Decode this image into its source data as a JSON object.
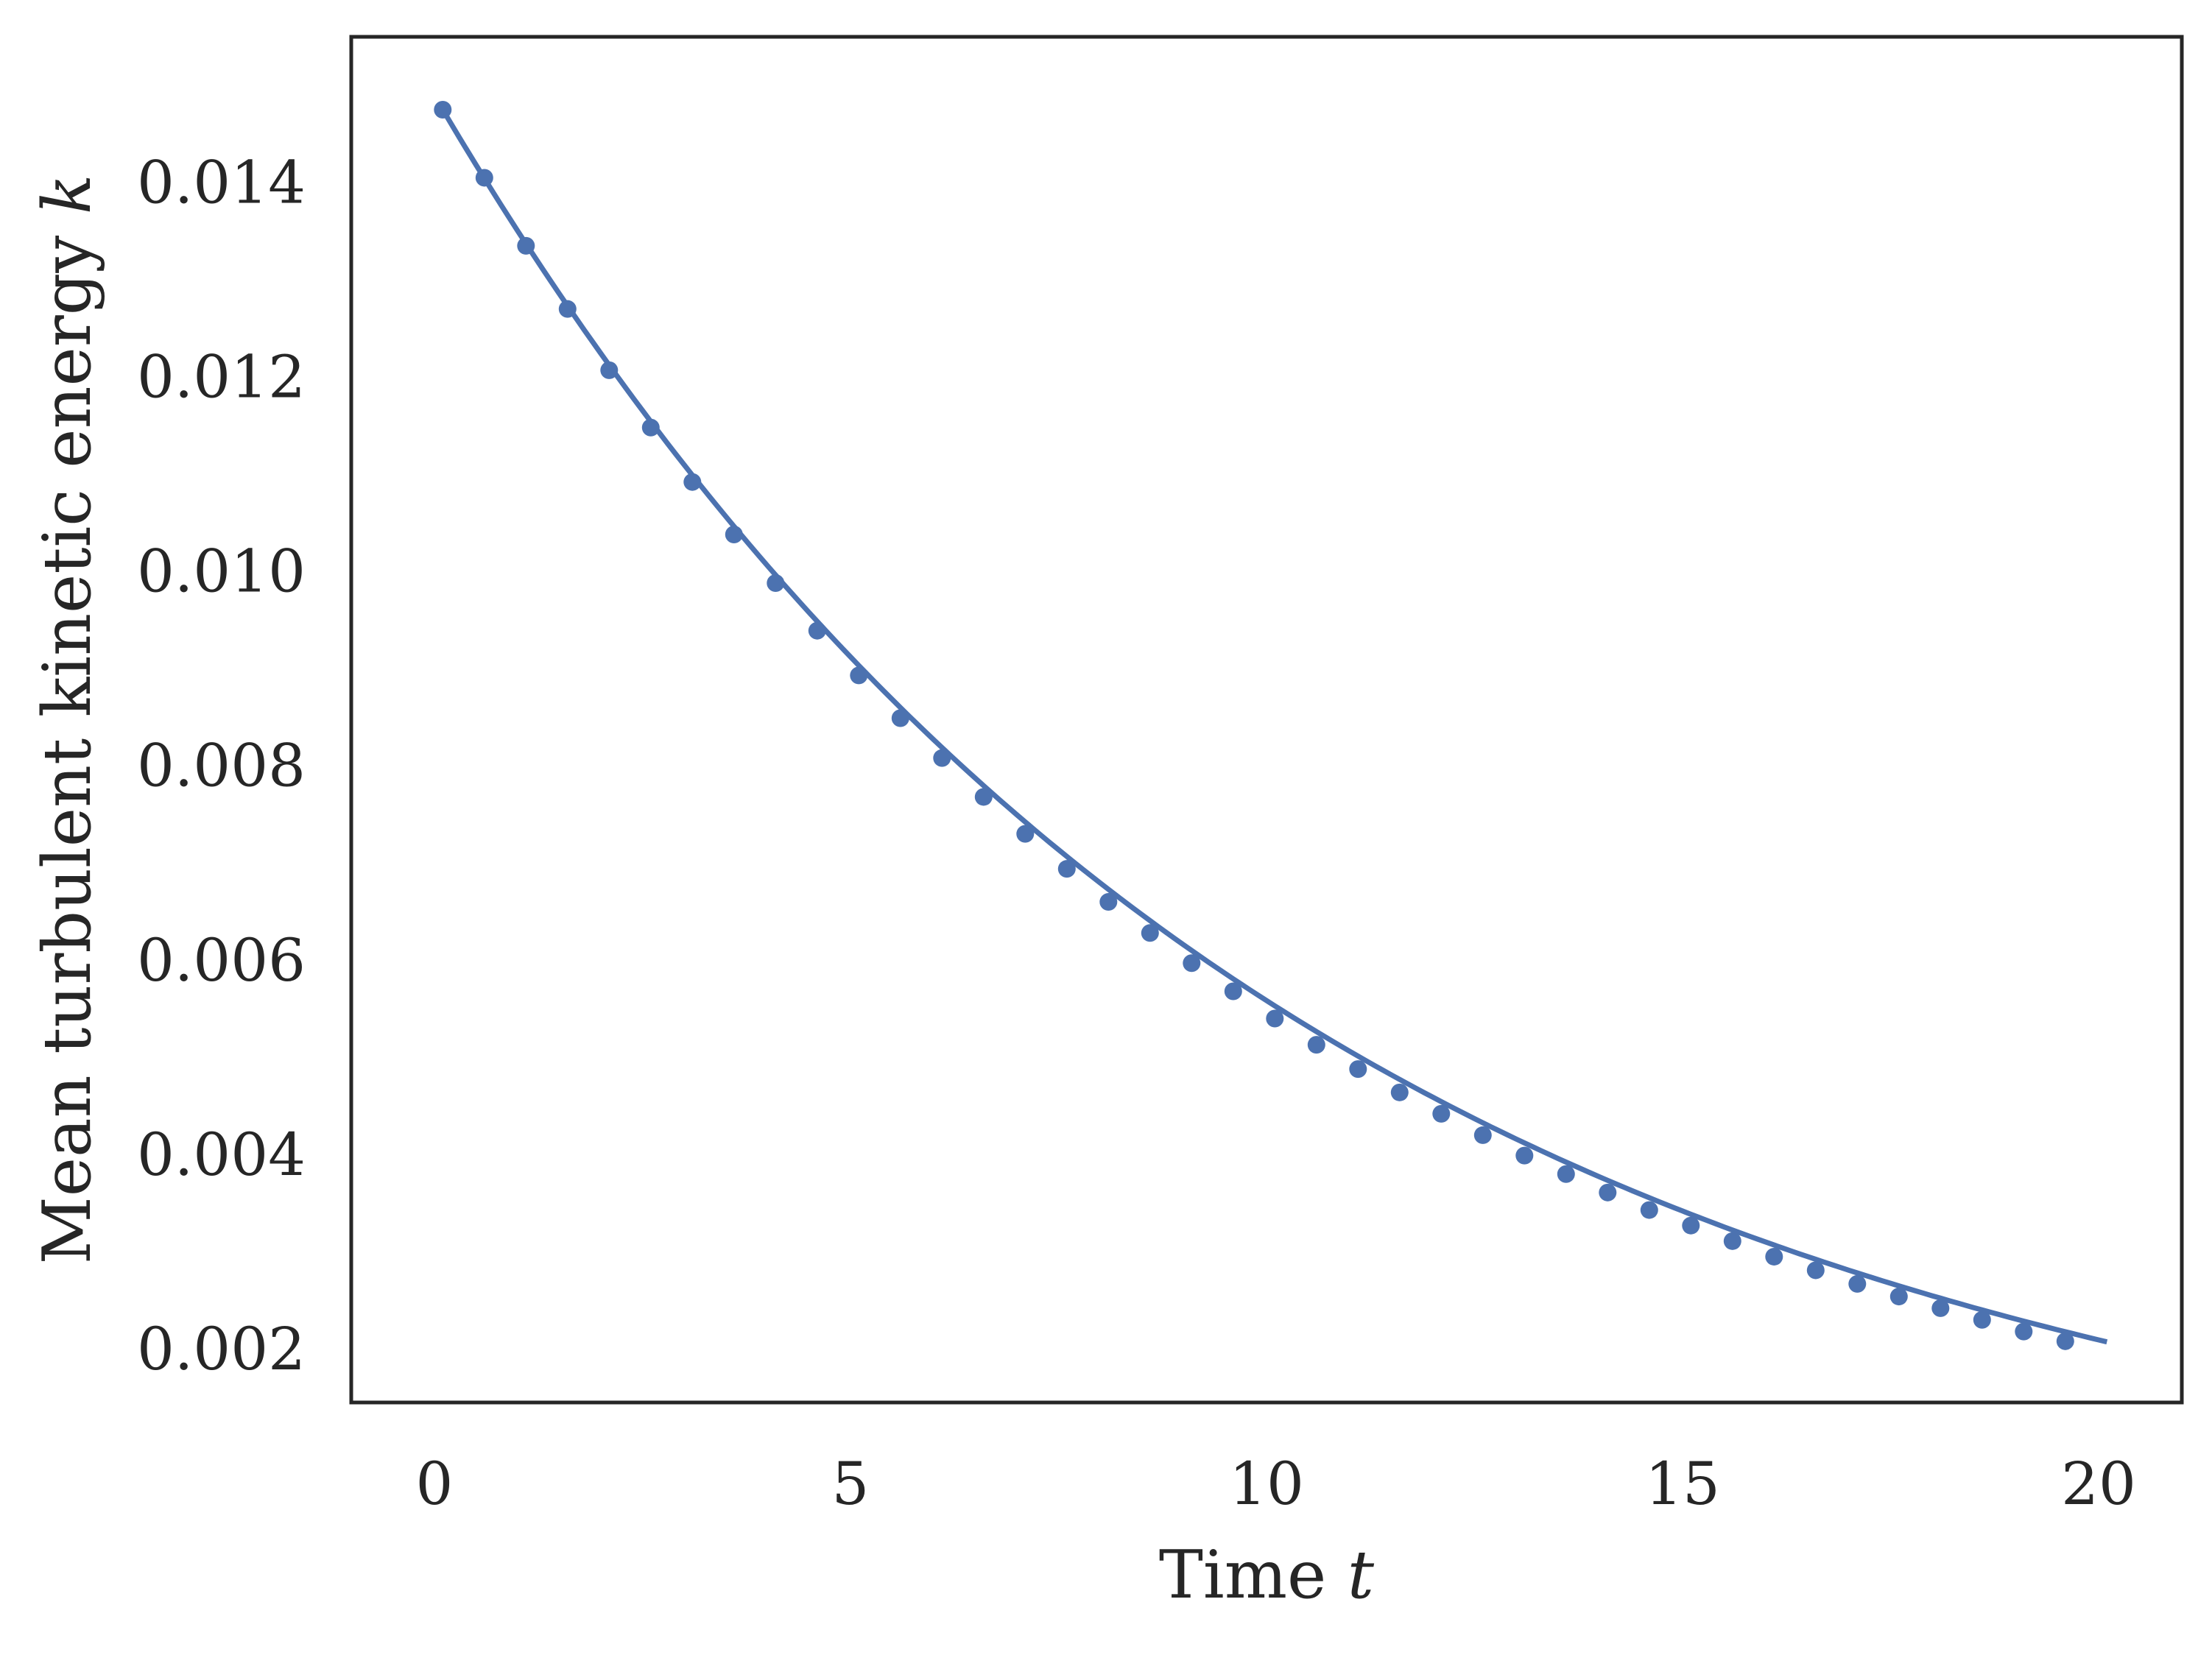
{
  "chart_data": {
    "type": "line",
    "title": "",
    "xlabel": "Time ",
    "xlabel_var": "t",
    "ylabel": "Mean turbulent kinetic energy ",
    "ylabel_var": "k",
    "xlim": [
      -1,
      21
    ],
    "ylim": [
      0.00145,
      0.0155
    ],
    "xticks": [
      0,
      5,
      10,
      15,
      20
    ],
    "xtick_labels": [
      "0",
      "5",
      "10",
      "15",
      "20"
    ],
    "yticks": [
      0.002,
      0.004,
      0.006,
      0.008,
      0.01,
      0.012,
      0.014
    ],
    "ytick_labels": [
      "0.002",
      "0.004",
      "0.006",
      "0.008",
      "0.010",
      "0.012",
      "0.014"
    ],
    "grid": false,
    "legend": "none",
    "series": [
      {
        "color": "#4C72B0",
        "line": {
          "x": [
            0.1,
            20.1
          ],
          "y_start": 0.01475,
          "decay_rate": 0.0981
        },
        "markers": {
          "x": [
            0.1,
            0.6,
            1.1,
            1.6,
            2.1,
            2.6,
            3.1,
            3.6,
            4.1,
            4.6,
            5.1,
            5.6,
            6.1,
            6.6,
            7.1,
            7.6,
            8.1,
            8.6,
            9.1,
            9.6,
            10.1,
            10.6,
            11.1,
            11.6,
            12.1,
            12.6,
            13.1,
            13.6,
            14.1,
            14.6,
            15.1,
            15.6,
            16.1,
            16.6,
            17.1,
            17.6,
            18.1,
            18.6,
            19.1,
            19.6
          ],
          "y": [
            0.01475,
            0.01405,
            0.01335,
            0.0127,
            0.01207,
            0.01148,
            0.01092,
            0.01038,
            0.00988,
            0.00939,
            0.00893,
            0.00849,
            0.00808,
            0.00768,
            0.0073,
            0.00694,
            0.0066,
            0.00628,
            0.00597,
            0.00568,
            0.0054,
            0.00513,
            0.00488,
            0.00464,
            0.00442,
            0.0042,
            0.00399,
            0.0038,
            0.00361,
            0.00343,
            0.00327,
            0.00311,
            0.00295,
            0.00281,
            0.00267,
            0.00254,
            0.00242,
            0.0023,
            0.00218,
            0.00208
          ]
        }
      }
    ]
  }
}
